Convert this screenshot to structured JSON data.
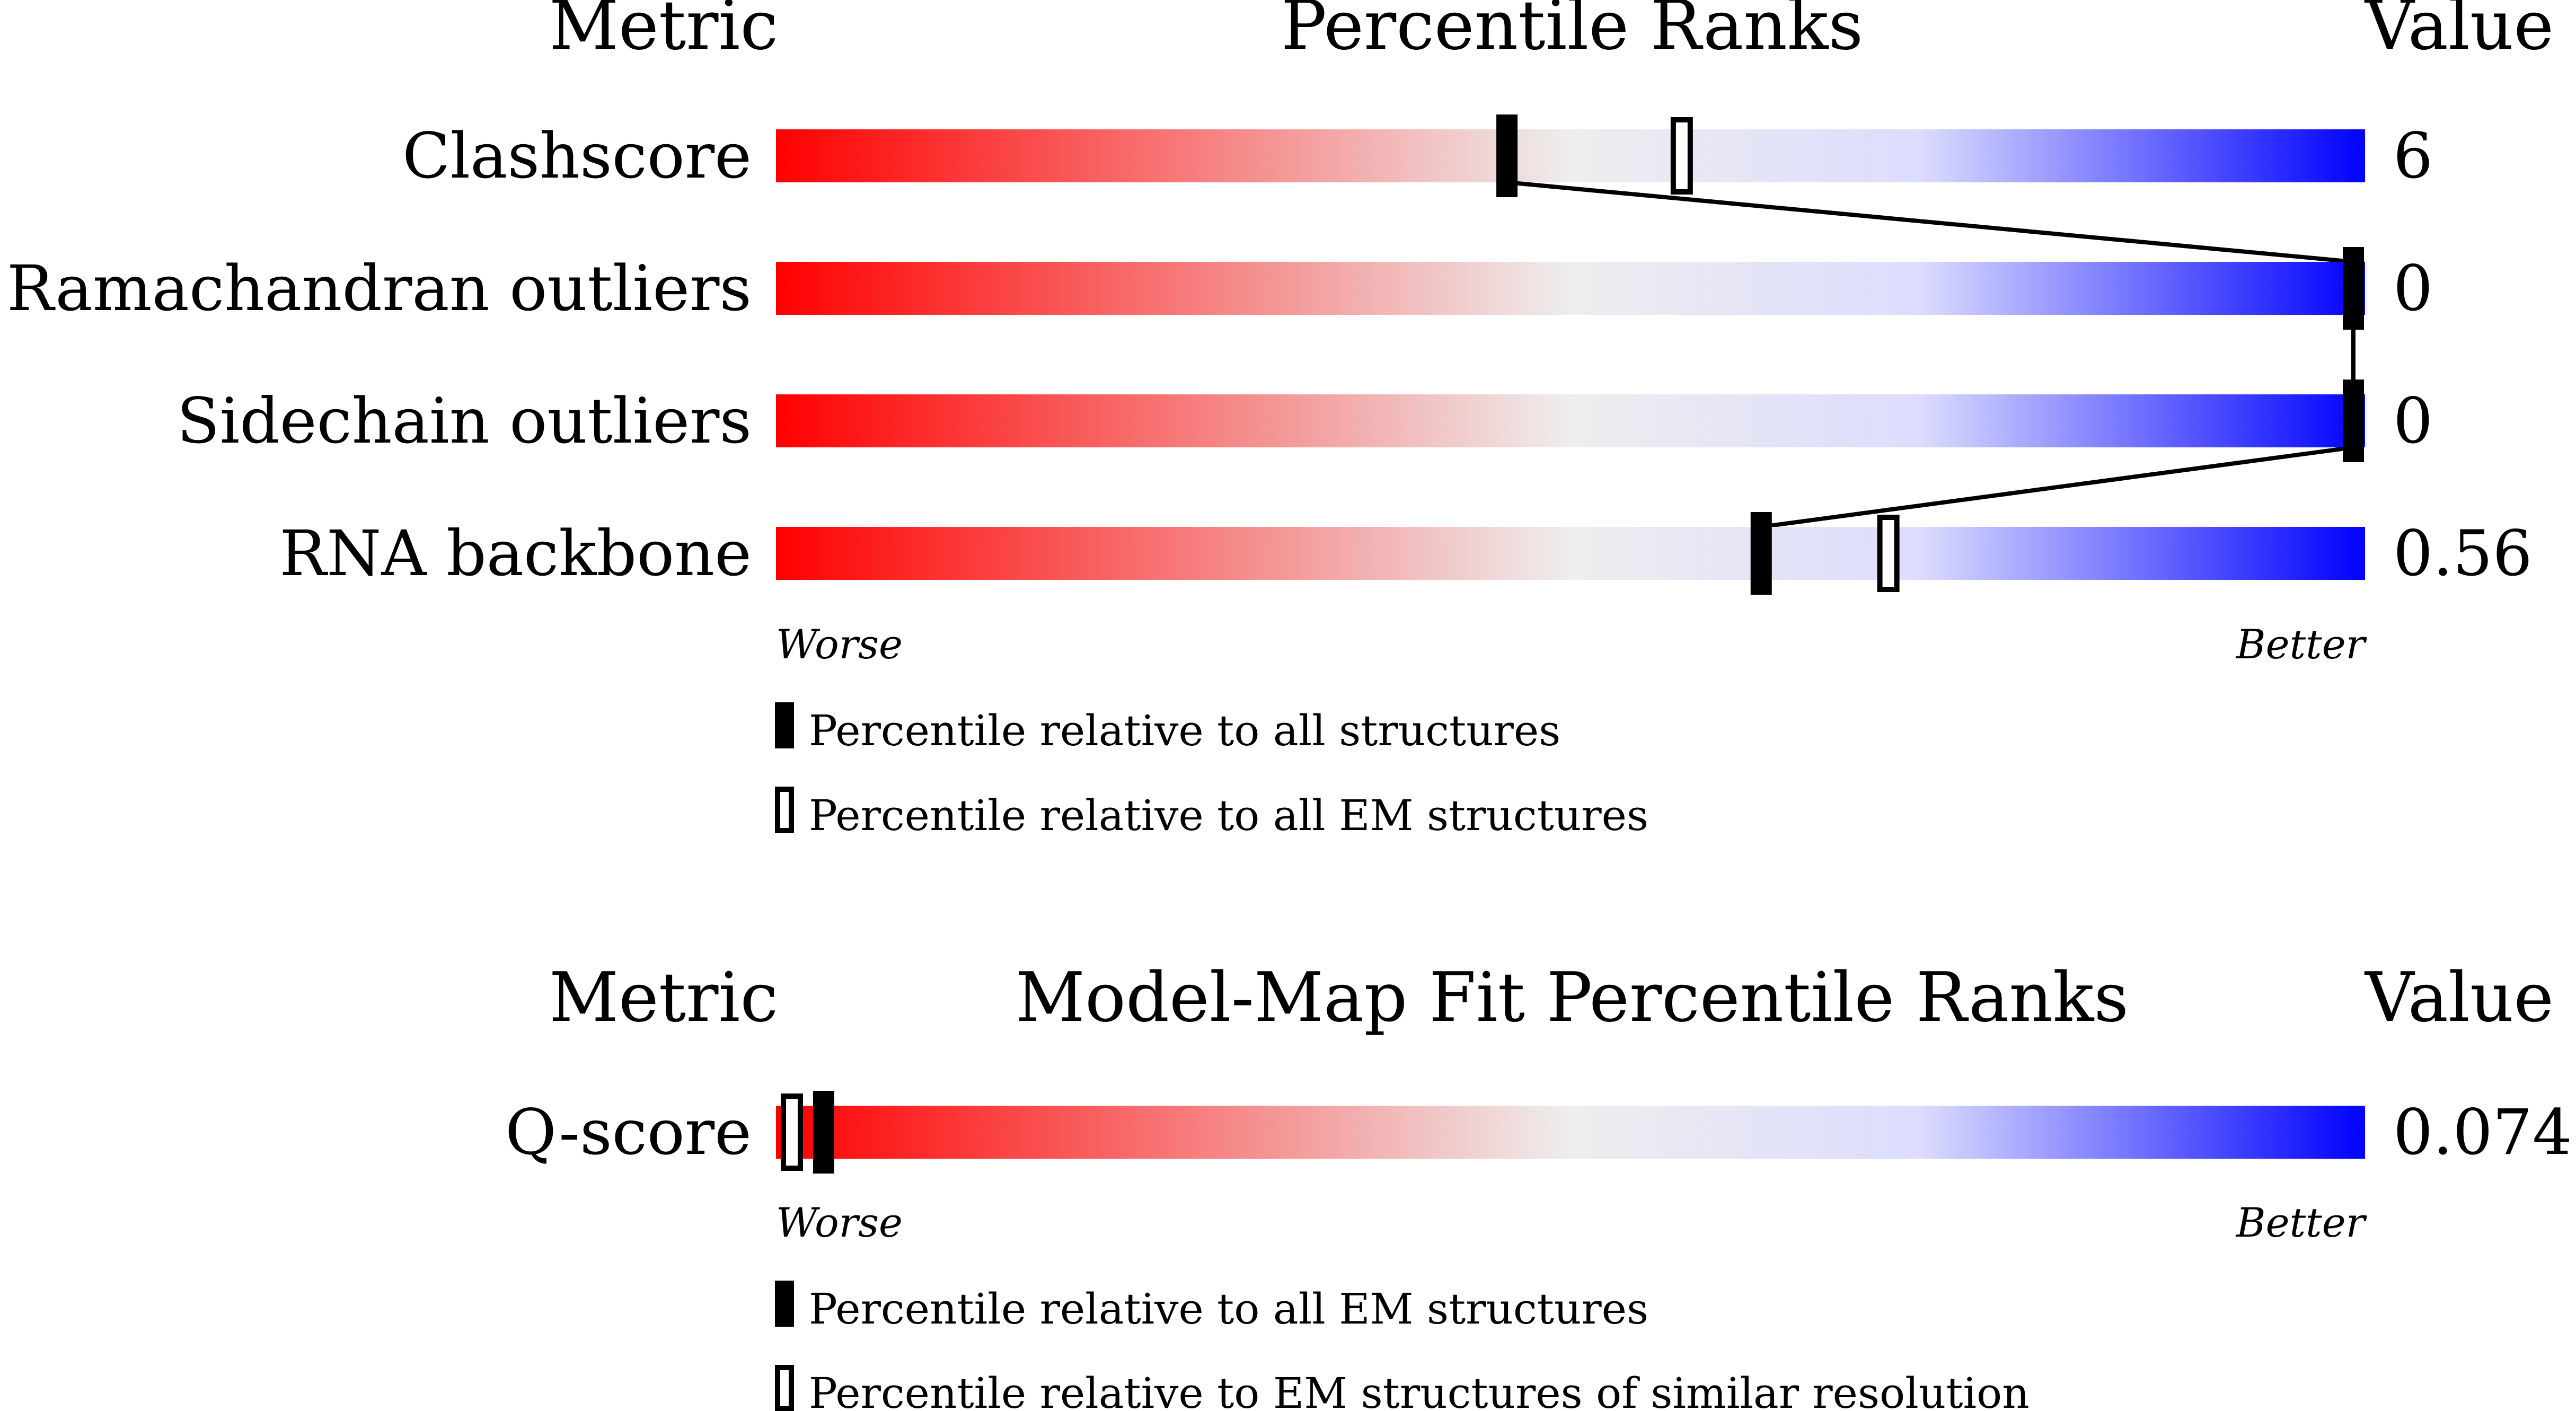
{
  "colors": {
    "worse": "#ff0000",
    "mid": "#eeeeee",
    "light_blue": "#dcdcff",
    "better": "#0000ff",
    "marker": "#000000",
    "background": "#ffffff"
  },
  "chart_data": [
    {
      "type": "percentile-bar",
      "title": "Percentile Ranks",
      "metric_header": "Metric",
      "value_header": "Value",
      "scale": {
        "low_label": "Worse",
        "high_label": "Better",
        "range": [
          0,
          100
        ]
      },
      "rows": [
        {
          "metric": "Clashscore",
          "value": "6",
          "percentile_all": 46,
          "percentile_em": 57
        },
        {
          "metric": "Ramachandran outliers",
          "value": "0",
          "percentile_all": 100,
          "percentile_em": null
        },
        {
          "metric": "Sidechain outliers",
          "value": "0",
          "percentile_all": 100,
          "percentile_em": null
        },
        {
          "metric": "RNA backbone",
          "value": "0.56",
          "percentile_all": 62,
          "percentile_em": 70
        }
      ],
      "legend": [
        {
          "marker": "filled",
          "text": "Percentile relative to all structures"
        },
        {
          "marker": "hollow",
          "text": "Percentile relative to all EM structures"
        }
      ]
    },
    {
      "type": "percentile-bar",
      "title": "Model-Map Fit Percentile Ranks",
      "metric_header": "Metric",
      "value_header": "Value",
      "scale": {
        "low_label": "Worse",
        "high_label": "Better",
        "range": [
          0,
          100
        ]
      },
      "rows": [
        {
          "metric": "Q-score",
          "value": "0.074",
          "percentile_all": 3,
          "percentile_em": 1
        }
      ],
      "legend": [
        {
          "marker": "filled",
          "text": "Percentile relative to all EM structures"
        },
        {
          "marker": "hollow",
          "text": "Percentile relative to EM structures of similar resolution"
        }
      ]
    }
  ]
}
